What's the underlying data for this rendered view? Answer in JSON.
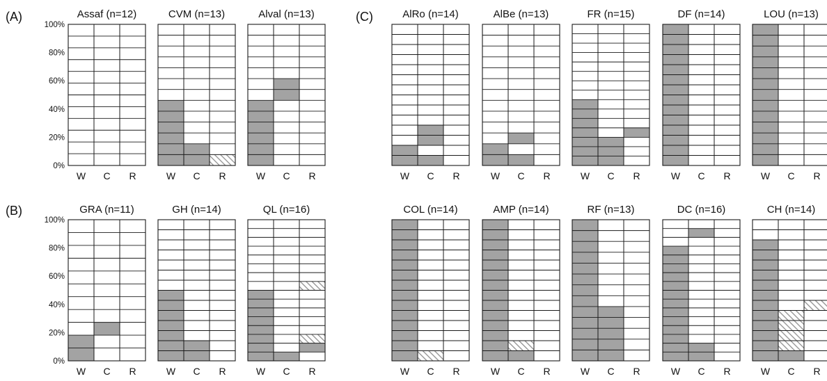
{
  "colors": {
    "background": "#ffffff",
    "grid": "#1a1a1a",
    "filled": "#a3a3a3",
    "hatch_line": "#8f8f8f"
  },
  "chart_data": {
    "type": "grid-bar",
    "panel_labels": [
      "(A)",
      "(B)",
      "(C)"
    ],
    "y_ticks": [
      "0%",
      "20%",
      "40%",
      "60%",
      "80%",
      "100%"
    ],
    "categories": [
      "W",
      "C",
      "R"
    ],
    "cell_legend": {
      "filled": "solid grey cell",
      "hatched": "hatched grey cell"
    },
    "charts": [
      {
        "title": "Assaf (n=12)",
        "n": 12,
        "y_axis": true,
        "filled": [
          [],
          [],
          []
        ],
        "hatched": [
          [],
          [],
          []
        ]
      },
      {
        "title": "CVM (n=13)",
        "n": 13,
        "y_axis": false,
        "filled": [
          [
            0,
            1,
            2,
            3,
            4,
            5
          ],
          [
            0,
            1
          ],
          []
        ],
        "hatched": [
          [],
          [],
          [
            0
          ]
        ]
      },
      {
        "title": "Alval (n=13)",
        "n": 13,
        "y_axis": false,
        "filled": [
          [
            0,
            1,
            2,
            3,
            4,
            5
          ],
          [
            6,
            7
          ],
          []
        ],
        "hatched": [
          [],
          [],
          []
        ]
      },
      {
        "title": "AlRo (n=14)",
        "n": 14,
        "y_axis": false,
        "filled": [
          [
            0,
            1
          ],
          [
            0,
            2,
            3
          ],
          []
        ],
        "hatched": [
          [],
          [],
          []
        ]
      },
      {
        "title": "AlBe (n=13)",
        "n": 13,
        "y_axis": false,
        "filled": [
          [
            0,
            1
          ],
          [
            0,
            2
          ],
          []
        ],
        "hatched": [
          [],
          [],
          []
        ]
      },
      {
        "title": "FR (n=15)",
        "n": 15,
        "y_axis": false,
        "filled": [
          [
            0,
            1,
            2,
            3,
            4,
            5,
            6
          ],
          [
            0,
            1,
            2
          ],
          [
            3
          ]
        ],
        "hatched": [
          [],
          [],
          []
        ]
      },
      {
        "title": "DF (n=14)",
        "n": 14,
        "y_axis": false,
        "filled": [
          [
            0,
            1,
            2,
            3,
            4,
            5,
            6,
            7,
            8,
            9,
            10,
            11,
            12,
            13
          ],
          [],
          []
        ],
        "hatched": [
          [],
          [],
          []
        ]
      },
      {
        "title": "LOU (n=13)",
        "n": 13,
        "y_axis": false,
        "filled": [
          [
            0,
            1,
            2,
            3,
            4,
            5,
            6,
            7,
            8,
            9,
            10,
            11,
            12
          ],
          [],
          []
        ],
        "hatched": [
          [],
          [],
          []
        ]
      },
      {
        "title": "GRA (n=11)",
        "n": 11,
        "y_axis": true,
        "filled": [
          [
            0,
            1
          ],
          [
            2
          ],
          []
        ],
        "hatched": [
          [],
          [],
          []
        ]
      },
      {
        "title": "GH (n=14)",
        "n": 14,
        "y_axis": false,
        "filled": [
          [
            0,
            1,
            2,
            3,
            4,
            5,
            6
          ],
          [
            0,
            1
          ],
          []
        ],
        "hatched": [
          [],
          [],
          []
        ]
      },
      {
        "title": "QL (n=16)",
        "n": 16,
        "y_axis": false,
        "filled": [
          [
            0,
            1,
            2,
            3,
            4,
            5,
            6,
            7
          ],
          [
            0
          ],
          [
            1
          ]
        ],
        "hatched": [
          [],
          [],
          [
            2,
            8
          ]
        ]
      },
      {
        "title": "COL (n=14)",
        "n": 14,
        "y_axis": false,
        "filled": [
          [
            0,
            1,
            2,
            3,
            4,
            5,
            6,
            7,
            8,
            9,
            10,
            11,
            12,
            13
          ],
          [],
          []
        ],
        "hatched": [
          [],
          [
            0
          ],
          []
        ]
      },
      {
        "title": "AMP (n=14)",
        "n": 14,
        "y_axis": false,
        "filled": [
          [
            0,
            1,
            2,
            3,
            4,
            5,
            6,
            7,
            8,
            9,
            10,
            11,
            12,
            13
          ],
          [
            0
          ],
          []
        ],
        "hatched": [
          [],
          [
            1
          ],
          []
        ]
      },
      {
        "title": "RF (n=13)",
        "n": 13,
        "y_axis": false,
        "filled": [
          [
            0,
            1,
            2,
            3,
            4,
            5,
            6,
            7,
            8,
            9,
            10,
            11,
            12
          ],
          [
            0,
            1,
            2,
            3,
            4
          ],
          []
        ],
        "hatched": [
          [],
          [],
          []
        ]
      },
      {
        "title": "DC (n=16)",
        "n": 16,
        "y_axis": false,
        "filled": [
          [
            0,
            1,
            2,
            3,
            4,
            5,
            6,
            7,
            8,
            9,
            10,
            11,
            12
          ],
          [
            0,
            1,
            14
          ],
          []
        ],
        "hatched": [
          [],
          [],
          []
        ]
      },
      {
        "title": "CH (n=14)",
        "n": 14,
        "y_axis": false,
        "filled": [
          [
            0,
            1,
            2,
            3,
            4,
            5,
            6,
            7,
            8,
            9,
            10,
            11
          ],
          [
            0
          ],
          []
        ],
        "hatched": [
          [],
          [
            1,
            2,
            3,
            4
          ],
          [
            5
          ]
        ]
      }
    ]
  }
}
